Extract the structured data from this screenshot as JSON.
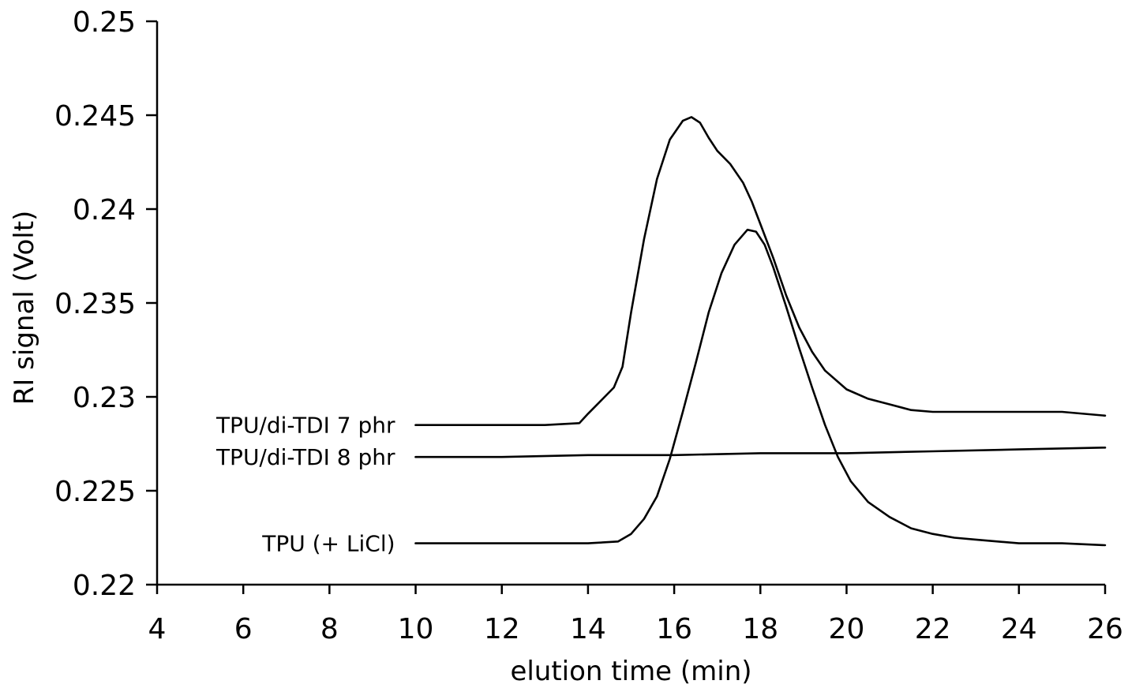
{
  "chart_data": {
    "type": "line",
    "title": "",
    "xlabel": "elution time (min)",
    "ylabel": "RI signal (Volt)",
    "xlim": [
      4,
      26
    ],
    "ylim": [
      0.22,
      0.25
    ],
    "x_ticks": [
      4,
      6,
      8,
      10,
      12,
      14,
      16,
      18,
      20,
      22,
      24,
      26
    ],
    "x_tick_labels": [
      "4",
      "6",
      "8",
      "10",
      "12",
      "14",
      "16",
      "18",
      "20",
      "22",
      "24",
      "26"
    ],
    "y_ticks": [
      0.22,
      0.225,
      0.23,
      0.235,
      0.24,
      0.245,
      0.25
    ],
    "y_tick_labels": [
      "0.22",
      "0.225",
      "0.23",
      "0.235",
      "0.24",
      "0.245",
      "0.25"
    ],
    "grid": false,
    "legend": "none (inline labels at left of each curve)",
    "series": [
      {
        "name": "TPU/di-TDI 7 phr",
        "x": [
          10,
          11,
          12,
          13,
          13.8,
          14.0,
          14.3,
          14.6,
          14.8,
          15.0,
          15.3,
          15.6,
          15.9,
          16.2,
          16.4,
          16.6,
          16.8,
          17.0,
          17.3,
          17.6,
          17.8,
          18.0,
          18.3,
          18.6,
          18.9,
          19.2,
          19.5,
          20.0,
          20.5,
          21.0,
          21.5,
          22.0,
          23.0,
          24.0,
          25.0,
          26.0
        ],
        "y": [
          0.2285,
          0.2285,
          0.2285,
          0.2285,
          0.2286,
          0.2291,
          0.2298,
          0.2305,
          0.2316,
          0.2345,
          0.2384,
          0.2416,
          0.2437,
          0.2447,
          0.2449,
          0.2446,
          0.2438,
          0.2431,
          0.2424,
          0.2414,
          0.2404,
          0.2392,
          0.2374,
          0.2354,
          0.2337,
          0.2324,
          0.2314,
          0.2304,
          0.2299,
          0.2296,
          0.2293,
          0.2292,
          0.2292,
          0.2292,
          0.2292,
          0.229
        ]
      },
      {
        "name": "TPU/di-TDI 8 phr",
        "x": [
          10,
          12,
          14,
          16,
          18,
          20,
          22,
          24,
          26
        ],
        "y": [
          0.2268,
          0.2268,
          0.2269,
          0.2269,
          0.227,
          0.227,
          0.2271,
          0.2272,
          0.2273
        ]
      },
      {
        "name": "TPU (+ LiCl)",
        "x": [
          10,
          11,
          12,
          13,
          14,
          14.7,
          15.0,
          15.3,
          15.6,
          15.9,
          16.2,
          16.5,
          16.8,
          17.1,
          17.4,
          17.7,
          17.9,
          18.1,
          18.3,
          18.6,
          18.9,
          19.2,
          19.5,
          19.8,
          20.1,
          20.5,
          21.0,
          21.5,
          22.0,
          22.5,
          23.0,
          24.0,
          25.0,
          26.0
        ],
        "y": [
          0.2222,
          0.2222,
          0.2222,
          0.2222,
          0.2222,
          0.2223,
          0.2227,
          0.2235,
          0.2247,
          0.2267,
          0.2292,
          0.2318,
          0.2345,
          0.2366,
          0.2381,
          0.2389,
          0.2388,
          0.2381,
          0.2369,
          0.2348,
          0.2326,
          0.2305,
          0.2285,
          0.2268,
          0.2255,
          0.2244,
          0.2236,
          0.223,
          0.2227,
          0.2225,
          0.2224,
          0.2222,
          0.2222,
          0.2221
        ]
      }
    ]
  }
}
